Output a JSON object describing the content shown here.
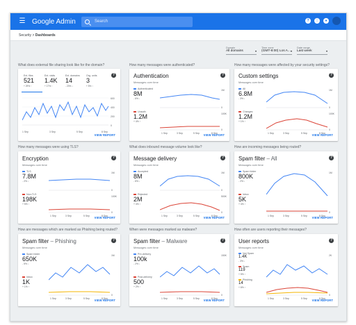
{
  "header": {
    "brand": "Google Admin",
    "search_placeholder": "Search",
    "menu_icon": "menu-icon",
    "actions": [
      "help-icon",
      "apps-icon",
      "notifications-icon"
    ]
  },
  "breadcrumb": {
    "root": "Security",
    "separator": ">",
    "current": "Dashboards"
  },
  "filters": [
    {
      "label": "Domain",
      "value": "All domains"
    },
    {
      "label": "Time zone",
      "value": "(GMT-8:00) Los A..."
    },
    {
      "label": "Date range",
      "value": "Last week"
    }
  ],
  "colors": {
    "blue": "#4285f4",
    "red": "#db4437",
    "orange": "#f4b400",
    "accent": "#1a73e8"
  },
  "cards": [
    {
      "question": "What does external file sharing look like for the domain?",
      "view_report": "VIEW REPORT",
      "tabs": [
        {
          "label": "Ext. files",
          "value": "521",
          "change": "+ 29% ↑"
        },
        {
          "label": "Ext. visits",
          "value": "1.4K",
          "change": "+ 17% ↑"
        },
        {
          "label": "Ext. domains",
          "value": "14",
          "change": "- 23% ↓"
        },
        {
          "label": "Org. units",
          "value": "3",
          "change": "+ 5% ↑"
        }
      ],
      "y_ticks": [
        "600",
        "400",
        "200",
        "0"
      ],
      "x_ticks": [
        "1 Sep",
        "3 Sep",
        "5 Sep",
        "8 Sep"
      ]
    },
    {
      "question": "How many messages were authenticated?",
      "title": "Authentication",
      "subtitle": "Messages over time",
      "view_report": "VIEW REPORT",
      "metrics": [
        {
          "legend": "Authenticated",
          "value": "8M",
          "change": "- 6% ↓"
        },
        {
          "legend": "Unauth",
          "value": "1.2M",
          "change": "+ 4% ↑"
        }
      ],
      "y_ticks": [
        [
          "1M",
          "0"
        ],
        [
          "100K",
          "0"
        ]
      ],
      "x_ticks": [
        "1 Sep",
        "3 Sep",
        "5 Sep",
        "8 Sep"
      ]
    },
    {
      "question": "How many messages were affected by your security settings?",
      "title": "Custom settings",
      "subtitle": "Messages over time",
      "view_report": "VIEW REPORT",
      "metrics": [
        {
          "legend": "All",
          "value": "6.8M",
          "change": "- 3% ↓"
        },
        {
          "legend": "Changes",
          "value": "1.2M",
          "change": "+ 1% ↑"
        }
      ],
      "y_ticks": [
        [
          "1M",
          "0"
        ],
        [
          "100K",
          "0"
        ]
      ],
      "x_ticks": [
        "1 Sep",
        "3 Sep",
        "5 Sep",
        "8 Sep"
      ]
    },
    {
      "question": "How many messages were using TLS?",
      "title": "Encryption",
      "subtitle": "Messages over time",
      "view_report": "VIEW REPORT",
      "metrics": [
        {
          "legend": "TLS",
          "value": "7.8M",
          "change": "- 2% ↓"
        },
        {
          "legend": "Non-TLS",
          "value": "198K",
          "change": "+ 5% ↑"
        }
      ],
      "y_ticks": [
        [
          "1M",
          "0"
        ],
        [
          "100K",
          "0"
        ]
      ],
      "x_ticks": [
        "1 Sep",
        "3 Sep",
        "5 Sep",
        "8 Sep"
      ]
    },
    {
      "question": "What does inbound message volume look like?",
      "title": "Message delivery",
      "subtitle": "Messages over time",
      "view_report": "VIEW REPORT",
      "metrics": [
        {
          "legend": "Accepted",
          "value": "8M",
          "change": "- 6% ↓"
        },
        {
          "legend": "Rejected",
          "value": "2M",
          "change": "+ 4% ↑"
        }
      ],
      "y_ticks": [
        [
          "1M",
          "0"
        ],
        [
          "500K",
          "0"
        ]
      ],
      "x_ticks": [
        "1 Sep",
        "3 Sep",
        "5 Sep",
        "8 Sep"
      ]
    },
    {
      "question": "How are incoming messages being routed?",
      "title": "Spam filter",
      "title_suffix": " – All",
      "subtitle": "Messages over time",
      "view_report": "VIEW REPORT",
      "metrics": [
        {
          "legend": "Spam folder",
          "value": "800K",
          "change": "- 2% ↓"
        },
        {
          "legend": "Inbox",
          "value": "5K",
          "change": "+ 4% ↑"
        }
      ],
      "y_ticks": [
        [
          "1M",
          "0"
        ]
      ],
      "x_ticks": [
        "1 Sep",
        "3 Sep",
        "5 Sep",
        "8 Sep"
      ]
    },
    {
      "question": "How are messages which are marked as Phishing being routed?",
      "title": "Spam filter",
      "title_suffix": " – Phishing",
      "subtitle": "Messages over time",
      "view_report": "VIEW REPORT",
      "metrics": [
        {
          "legend": "Spam folder",
          "value": "650K",
          "change": "- 5% ↓"
        },
        {
          "legend": "Inbox",
          "value": "1K",
          "change": "+ 1% ↑"
        }
      ],
      "y_ticks": [
        [
          "1M",
          "0"
        ]
      ],
      "x_ticks": [
        "1 Sep",
        "3 Sep",
        "5 Sep",
        "8 Sep"
      ]
    },
    {
      "question": "When were messages marked as malware?",
      "title": "Spam filter",
      "title_suffix": " – Malware",
      "subtitle": "Messages over time",
      "view_report": "VIEW REPORT",
      "metrics": [
        {
          "legend": "Pre-delivery",
          "value": "100k",
          "change": "- 2% ↓"
        },
        {
          "legend": "Post-delivery",
          "value": "500",
          "change": "+ 2% ↑"
        }
      ],
      "y_ticks": [
        [
          "150K",
          "0"
        ]
      ],
      "x_ticks": [
        "1 Sep",
        "3 Sep",
        "5 Sep",
        "8 Sep"
      ]
    },
    {
      "question": "How often are users reporting their messages?",
      "title": "User reports",
      "subtitle": "Messages over time",
      "view_report": "VIEW REPORT",
      "metrics": [
        {
          "legend": "Not Spam",
          "value": "1.4K",
          "change": "- 3% ↓"
        },
        {
          "legend": "Spam",
          "value": "119",
          "change": "+ 5% ↑"
        },
        {
          "legend": "Phishing",
          "value": "14",
          "change": "+ 6% ↑"
        }
      ],
      "y_ticks": [
        [
          "2K",
          "0"
        ]
      ],
      "x_ticks": [
        "1 Sep",
        "3 Sep",
        "5 Sep",
        "8 Sep"
      ]
    }
  ]
}
